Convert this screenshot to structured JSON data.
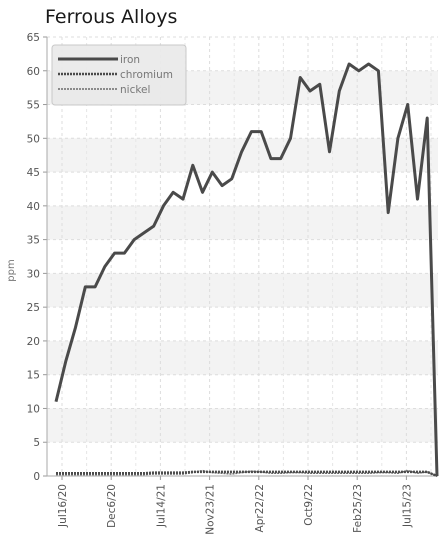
{
  "chart_data": {
    "type": "line",
    "title": "Ferrous Alloys",
    "ylabel": "ppm",
    "xlabel": "",
    "ylim": [
      0,
      65
    ],
    "yticks": [
      0,
      5,
      10,
      15,
      20,
      25,
      30,
      35,
      40,
      45,
      50,
      55,
      60,
      65
    ],
    "xticks": [
      "Jul16/20",
      "Dec6/20",
      "Jul14/21",
      "Nov23/21",
      "Apr22/22",
      "Oct9/22",
      "Feb25/23",
      "Jul15/23"
    ],
    "grid": true,
    "legend_position": "top-left",
    "series": [
      {
        "name": "iron",
        "color": "#4a4a4a",
        "values": [
          11,
          17,
          22,
          28,
          28,
          31,
          33,
          33,
          35,
          36,
          37,
          40,
          42,
          41,
          46,
          42,
          45,
          43,
          44,
          48,
          51,
          51,
          47,
          47,
          50,
          59,
          57,
          58,
          48,
          57,
          61,
          60,
          61,
          60,
          39,
          50,
          55,
          41,
          53,
          0
        ]
      },
      {
        "name": "chromium",
        "color": "#4a4a4a",
        "values": [
          0.4,
          0.4,
          0.4,
          0.4,
          0.4,
          0.4,
          0.4,
          0.4,
          0.4,
          0.4,
          0.5,
          0.5,
          0.5,
          0.5,
          0.6,
          0.6,
          0.6,
          0.6,
          0.6,
          0.6,
          0.6,
          0.6,
          0.6,
          0.6,
          0.6,
          0.6,
          0.6,
          0.6,
          0.6,
          0.6,
          0.6,
          0.6,
          0.6,
          0.6,
          0.6,
          0.6,
          0.6,
          0.6,
          0.6,
          0
        ]
      },
      {
        "name": "nickel",
        "color": "#6a6a6a",
        "values": [
          0.2,
          0.2,
          0.2,
          0.2,
          0.2,
          0.2,
          0.2,
          0.2,
          0.2,
          0.2,
          0.3,
          0.3,
          0.3,
          0.3,
          0.5,
          0.8,
          0.5,
          0.4,
          0.3,
          0.5,
          0.7,
          0.6,
          0.4,
          0.4,
          0.5,
          0.5,
          0.4,
          0.4,
          0.4,
          0.4,
          0.4,
          0.4,
          0.4,
          0.5,
          0.5,
          0.4,
          0.8,
          0.4,
          0.6,
          0
        ]
      }
    ]
  }
}
